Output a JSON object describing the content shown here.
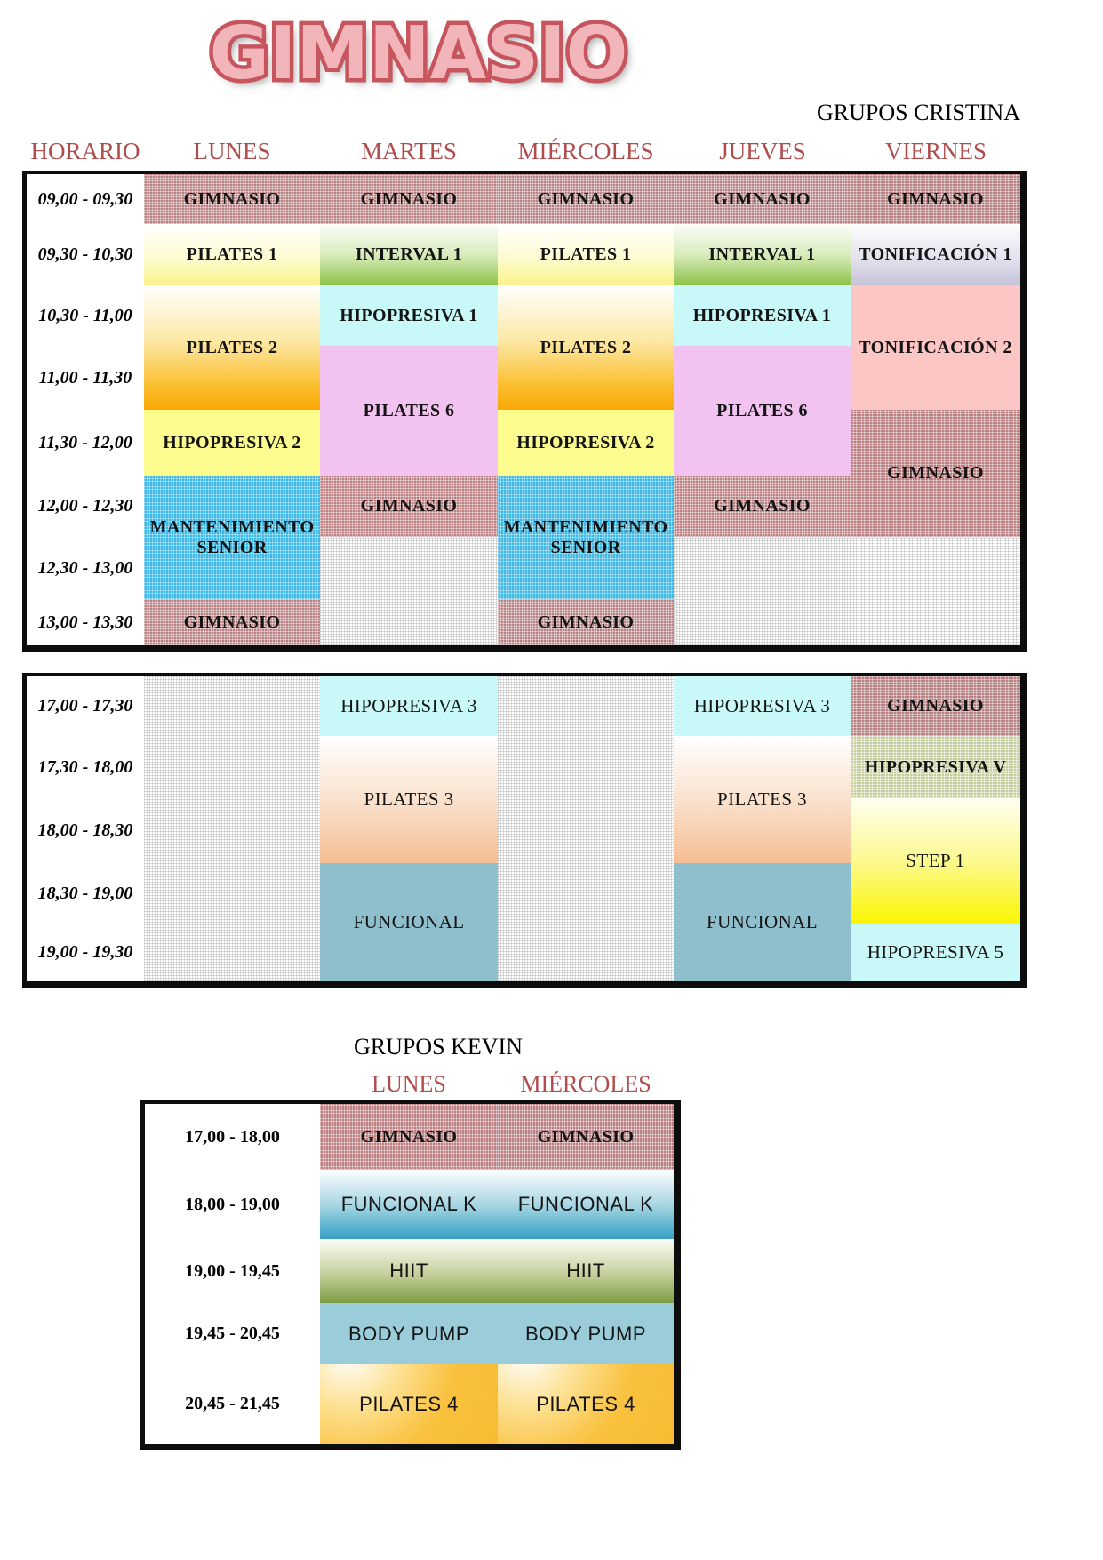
{
  "title": "GIMNASIO",
  "cristina": {
    "heading": "GRUPOS CRISTINA",
    "columns": [
      "HORARIO",
      "LUNES",
      "MARTES",
      "MIÉRCOLES",
      "JUEVES",
      "VIERNES"
    ],
    "morning": {
      "times": [
        "09,00 - 09,30",
        "09,30 - 10,30",
        "10,30 - 11,00",
        "11,00 - 11,30",
        "11,30 - 12,00",
        "12,00 - 12,30",
        "12,30 - 13,00",
        "13,00 - 13,30"
      ],
      "cells": [
        {
          "day": 0,
          "row": 0,
          "span": 1,
          "label": "GIMNASIO",
          "style": "rose",
          "font": "bold"
        },
        {
          "day": 0,
          "row": 1,
          "span": 1,
          "label": "PILATES 1",
          "style": "pilates1",
          "font": "bold"
        },
        {
          "day": 0,
          "row": 2,
          "span": 2,
          "label": "PILATES 2",
          "style": "pilates2",
          "font": "bold"
        },
        {
          "day": 0,
          "row": 4,
          "span": 1,
          "label": "HIPOPRESIVA 2",
          "style": "hipo2",
          "font": "bold"
        },
        {
          "day": 0,
          "row": 5,
          "span": 2,
          "label": "MANTENIMIENTO SENIOR",
          "style": "mant",
          "font": "bold"
        },
        {
          "day": 0,
          "row": 7,
          "span": 1,
          "label": "GIMNASIO",
          "style": "rose",
          "font": "bold"
        },
        {
          "day": 1,
          "row": 0,
          "span": 1,
          "label": "GIMNASIO",
          "style": "rose",
          "font": "bold"
        },
        {
          "day": 1,
          "row": 1,
          "span": 1,
          "label": "INTERVAL 1",
          "style": "interval",
          "font": "bold"
        },
        {
          "day": 1,
          "row": 2,
          "span": 1,
          "label": "HIPOPRESIVA 1",
          "style": "cyan",
          "font": "bold"
        },
        {
          "day": 1,
          "row": 3,
          "span": 2,
          "label": "PILATES 6",
          "style": "pilates6",
          "font": "bold"
        },
        {
          "day": 1,
          "row": 5,
          "span": 1,
          "label": "GIMNASIO",
          "style": "rose",
          "font": "bold"
        },
        {
          "day": 1,
          "row": 6,
          "span": 2,
          "label": "",
          "style": "empty",
          "font": "bold"
        },
        {
          "day": 2,
          "row": 0,
          "span": 1,
          "label": "GIMNASIO",
          "style": "rose",
          "font": "bold"
        },
        {
          "day": 2,
          "row": 1,
          "span": 1,
          "label": "PILATES 1",
          "style": "pilates1",
          "font": "bold"
        },
        {
          "day": 2,
          "row": 2,
          "span": 2,
          "label": "PILATES 2",
          "style": "pilates2",
          "font": "bold"
        },
        {
          "day": 2,
          "row": 4,
          "span": 1,
          "label": "HIPOPRESIVA 2",
          "style": "hipo2",
          "font": "bold"
        },
        {
          "day": 2,
          "row": 5,
          "span": 2,
          "label": "MANTENIMIENTO SENIOR",
          "style": "mant",
          "font": "bold"
        },
        {
          "day": 2,
          "row": 7,
          "span": 1,
          "label": "GIMNASIO",
          "style": "rose",
          "font": "bold"
        },
        {
          "day": 3,
          "row": 0,
          "span": 1,
          "label": "GIMNASIO",
          "style": "rose",
          "font": "bold"
        },
        {
          "day": 3,
          "row": 1,
          "span": 1,
          "label": "INTERVAL 1",
          "style": "interval",
          "font": "bold"
        },
        {
          "day": 3,
          "row": 2,
          "span": 1,
          "label": "HIPOPRESIVA 1",
          "style": "cyan",
          "font": "bold"
        },
        {
          "day": 3,
          "row": 3,
          "span": 2,
          "label": "PILATES 6",
          "style": "pilates6",
          "font": "bold"
        },
        {
          "day": 3,
          "row": 5,
          "span": 1,
          "label": "GIMNASIO",
          "style": "rose",
          "font": "bold"
        },
        {
          "day": 3,
          "row": 6,
          "span": 2,
          "label": "",
          "style": "empty",
          "font": "bold"
        },
        {
          "day": 4,
          "row": 0,
          "span": 1,
          "label": "GIMNASIO",
          "style": "rose",
          "font": "bold"
        },
        {
          "day": 4,
          "row": 1,
          "span": 1,
          "label": "TONIFICACIÓN 1",
          "style": "tonif1",
          "font": "bold"
        },
        {
          "day": 4,
          "row": 2,
          "span": 2,
          "label": "TONIFICACIÓN 2",
          "style": "tonif2",
          "font": "bold"
        },
        {
          "day": 4,
          "row": 4,
          "span": 2,
          "label": "GIMNASIO",
          "style": "rose",
          "font": "bold"
        },
        {
          "day": 4,
          "row": 6,
          "span": 2,
          "label": "",
          "style": "empty",
          "font": "bold"
        }
      ]
    },
    "evening": {
      "times": [
        "17,00 - 17,30",
        "17,30 - 18,00",
        "18,00 - 18,30",
        "18,30 - 19,00",
        "19,00 - 19,30"
      ],
      "cells": [
        {
          "day": 0,
          "row": 0,
          "span": 5,
          "label": "",
          "style": "empty",
          "font": "serif"
        },
        {
          "day": 1,
          "row": 0,
          "span": 1,
          "label": "HIPOPRESIVA 3",
          "style": "cyan",
          "font": "serif"
        },
        {
          "day": 1,
          "row": 1,
          "span": 2,
          "label": "PILATES 3",
          "style": "pilates3",
          "font": "serif"
        },
        {
          "day": 1,
          "row": 3,
          "span": 2,
          "label": "FUNCIONAL",
          "style": "funcional",
          "font": "serif"
        },
        {
          "day": 2,
          "row": 0,
          "span": 5,
          "label": "",
          "style": "empty",
          "font": "serif"
        },
        {
          "day": 3,
          "row": 0,
          "span": 1,
          "label": "HIPOPRESIVA 3",
          "style": "cyan",
          "font": "serif"
        },
        {
          "day": 3,
          "row": 1,
          "span": 2,
          "label": "PILATES 3",
          "style": "pilates3",
          "font": "serif"
        },
        {
          "day": 3,
          "row": 3,
          "span": 2,
          "label": "FUNCIONAL",
          "style": "funcional",
          "font": "serif"
        },
        {
          "day": 4,
          "row": 0,
          "span": 1,
          "label": "GIMNASIO",
          "style": "rose",
          "font": "bold"
        },
        {
          "day": 4,
          "row": 1,
          "span": 1,
          "label": "HIPOPRESIVA V",
          "style": "sage",
          "font": "bold"
        },
        {
          "day": 4,
          "row": 2,
          "span": 2,
          "label": "STEP 1",
          "style": "step",
          "font": "serif"
        },
        {
          "day": 4,
          "row": 4,
          "span": 1,
          "label": "HIPOPRESIVA 5",
          "style": "cyan",
          "font": "serif"
        }
      ]
    }
  },
  "kevin": {
    "heading": "GRUPOS KEVIN",
    "columns": [
      "LUNES",
      "MIÉRCOLES"
    ],
    "table": {
      "times": [
        "17,00 - 18,00",
        "18,00 - 19,00",
        "19,00 - 19,45",
        "19,45 - 20,45",
        "20,45 - 21,45"
      ],
      "cells": [
        {
          "day": 0,
          "row": 0,
          "span": 1,
          "label": "GIMNASIO",
          "style": "rose",
          "font": "bold"
        },
        {
          "day": 0,
          "row": 1,
          "span": 1,
          "label": "FUNCIONAL K",
          "style": "funck",
          "font": "sans"
        },
        {
          "day": 0,
          "row": 2,
          "span": 1,
          "label": "HIIT",
          "style": "hiit",
          "font": "sans"
        },
        {
          "day": 0,
          "row": 3,
          "span": 1,
          "label": "BODY PUMP",
          "style": "bodypump",
          "font": "sans"
        },
        {
          "day": 0,
          "row": 4,
          "span": 1,
          "label": "PILATES 4",
          "style": "pilates4",
          "font": "sans"
        },
        {
          "day": 1,
          "row": 0,
          "span": 1,
          "label": "GIMNASIO",
          "style": "rose",
          "font": "bold"
        },
        {
          "day": 1,
          "row": 1,
          "span": 1,
          "label": "FUNCIONAL K",
          "style": "funck",
          "font": "sans"
        },
        {
          "day": 1,
          "row": 2,
          "span": 1,
          "label": "HIIT",
          "style": "hiit",
          "font": "sans"
        },
        {
          "day": 1,
          "row": 3,
          "span": 1,
          "label": "BODY PUMP",
          "style": "bodypump",
          "font": "sans"
        },
        {
          "day": 1,
          "row": 4,
          "span": 1,
          "label": "PILATES 4",
          "style": "pilates4",
          "font": "sans"
        }
      ]
    }
  },
  "palette": {
    "title_fill": "#F2B6BA",
    "title_outline": "#C7555D",
    "header_red": "#AF4C4C",
    "gimnasio_rose": "#B97F81",
    "empty_gray": "#DCDCDC",
    "mantenimiento_blue": "#3FB9E3",
    "hipopresiva_cyan": "#C9F8F8",
    "hipopresiva2_yellow": "#FDFC8F",
    "pilates1_yellow": "#F9F28B",
    "pilates2_orange": "#F9A805",
    "interval_green": "#8CC349",
    "pilates6_violet": "#F2C3F1",
    "tonificacion1_lavender": "#C6C2D9",
    "tonificacion2_pink": "#FBC6C4",
    "pilates3_peach": "#F5BE93",
    "funcional_teal": "#8FBECD",
    "step_yellow": "#FAF501",
    "hipopresiva_v_sage": "#C6CEA2",
    "funcionalk_blue": "#46A9CB",
    "hiit_olive": "#7E9C44",
    "bodypump_teal": "#9ACCD9",
    "pilates4_amber": "#F8BC33"
  }
}
